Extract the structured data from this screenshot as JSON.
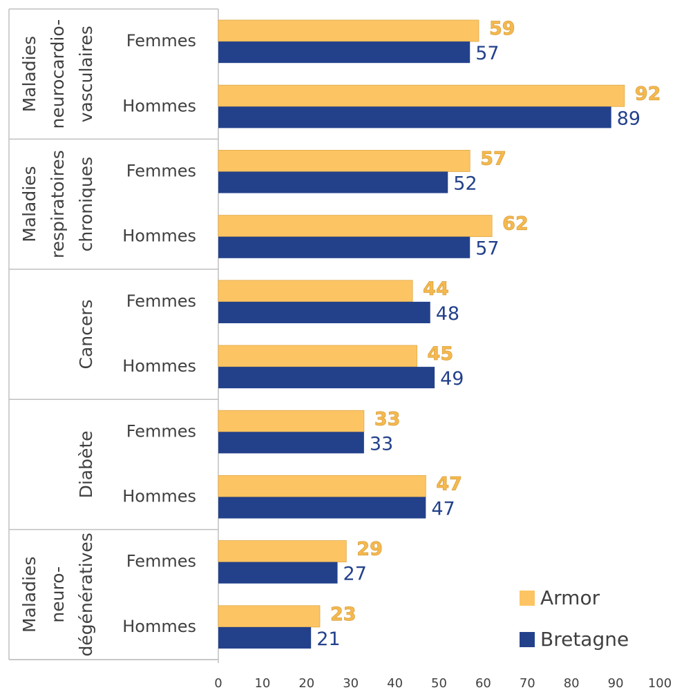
{
  "chart_data": {
    "type": "bar",
    "orientation": "horizontal",
    "groups": [
      {
        "label": [
          "Maladies",
          "neurocardio-",
          "vasculaires"
        ],
        "categories": [
          "Femmes",
          "Hommes"
        ]
      },
      {
        "label": [
          "Maladies",
          "respiratoires",
          "chroniques"
        ],
        "categories": [
          "Femmes",
          "Hommes"
        ]
      },
      {
        "label": [
          "Cancers"
        ],
        "categories": [
          "Femmes",
          "Hommes"
        ]
      },
      {
        "label": [
          "Diabète"
        ],
        "categories": [
          "Femmes",
          "Hommes"
        ]
      },
      {
        "label": [
          "Maladies",
          "neuro-",
          "dégénératives"
        ],
        "categories": [
          "Femmes",
          "Hommes"
        ]
      }
    ],
    "series": [
      {
        "name": "Armor",
        "color": "#fcc463",
        "label_color": "#f5b94e",
        "values": [
          59,
          92,
          57,
          62,
          44,
          45,
          33,
          47,
          29,
          23
        ]
      },
      {
        "name": "Bretagne",
        "color": "#23418b",
        "label_color": "#23418b",
        "values": [
          57,
          89,
          52,
          57,
          48,
          49,
          33,
          47,
          27,
          21
        ]
      }
    ],
    "xlim": [
      0,
      100
    ],
    "xticks": [
      0,
      10,
      20,
      30,
      40,
      50,
      60,
      70,
      80,
      90,
      100
    ],
    "legend": "lower right"
  }
}
